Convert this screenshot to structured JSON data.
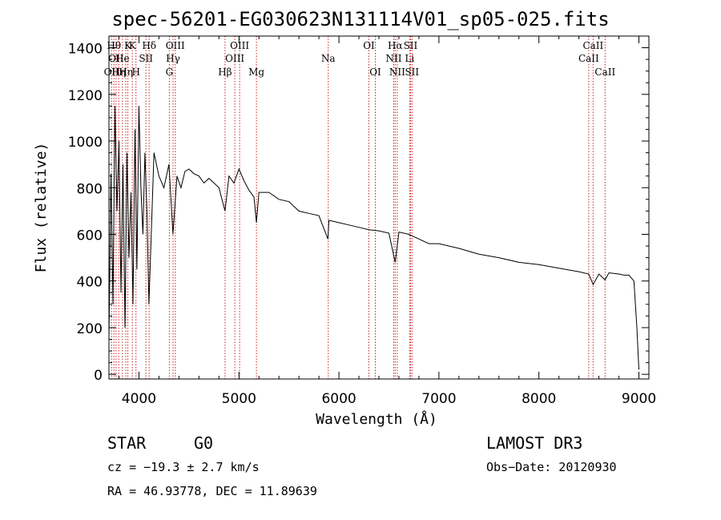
{
  "chart_data": {
    "type": "line",
    "title": "spec-56201-EG030623N131114V01_sp05-025.fits",
    "xlabel": "Wavelength (Å)",
    "ylabel": "Flux (relative)",
    "xlim": [
      3700,
      9100
    ],
    "ylim": [
      -20,
      1450
    ],
    "xticks": [
      4000,
      5000,
      6000,
      7000,
      8000,
      9000
    ],
    "yticks": [
      0,
      200,
      400,
      600,
      800,
      1000,
      1200,
      1400
    ],
    "series": [
      {
        "name": "flux",
        "x": [
          3700,
          3720,
          3740,
          3760,
          3780,
          3800,
          3820,
          3840,
          3860,
          3880,
          3900,
          3920,
          3940,
          3960,
          3980,
          4000,
          4020,
          4040,
          4060,
          4080,
          4100,
          4150,
          4200,
          4250,
          4300,
          4340,
          4380,
          4420,
          4460,
          4500,
          4550,
          4600,
          4650,
          4700,
          4750,
          4800,
          4861,
          4900,
          4950,
          5000,
          5050,
          5100,
          5150,
          5175,
          5200,
          5300,
          5400,
          5500,
          5600,
          5700,
          5800,
          5890,
          5900,
          6000,
          6100,
          6200,
          6300,
          6400,
          6500,
          6563,
          6600,
          6700,
          6800,
          6900,
          7000,
          7200,
          7400,
          7600,
          7800,
          8000,
          8200,
          8400,
          8498,
          8542,
          8600,
          8662,
          8700,
          8800,
          8850,
          8900,
          8950,
          8980,
          9000
        ],
        "y": [
          150,
          860,
          300,
          1150,
          700,
          1000,
          350,
          900,
          200,
          950,
          500,
          780,
          300,
          1050,
          450,
          1150,
          800,
          600,
          950,
          700,
          300,
          950,
          850,
          800,
          900,
          600,
          850,
          800,
          870,
          880,
          860,
          850,
          820,
          840,
          820,
          800,
          700,
          850,
          820,
          880,
          830,
          790,
          760,
          650,
          780,
          780,
          750,
          740,
          700,
          690,
          680,
          580,
          660,
          650,
          640,
          630,
          620,
          615,
          605,
          480,
          610,
          600,
          580,
          560,
          560,
          540,
          515,
          500,
          480,
          470,
          455,
          440,
          430,
          385,
          430,
          405,
          435,
          430,
          425,
          425,
          400,
          200,
          20
        ]
      }
    ],
    "lines": [
      {
        "x": 3726,
        "label": "OII",
        "row": 2
      },
      {
        "x": 3750,
        "label": "Hθ",
        "row": 0
      },
      {
        "x": 3771,
        "label": "OII",
        "row": 1
      },
      {
        "x": 3798,
        "label": "Hη",
        "row": 2
      },
      {
        "x": 3835,
        "label": "He",
        "row": 1
      },
      {
        "x": 3869,
        "label": "Hη",
        "row": 2
      },
      {
        "x": 3889,
        "label": "K",
        "row": 0
      },
      {
        "x": 3934,
        "label": "K",
        "row": 0
      },
      {
        "x": 3970,
        "label": "H",
        "row": 2
      },
      {
        "x": 4070,
        "label": "SII",
        "row": 1
      },
      {
        "x": 4102,
        "label": "Hδ",
        "row": 0
      },
      {
        "x": 4304,
        "label": "G",
        "row": 2
      },
      {
        "x": 4341,
        "label": "Hγ",
        "row": 1
      },
      {
        "x": 4363,
        "label": "OIII",
        "row": 0
      },
      {
        "x": 4861,
        "label": "Hβ",
        "row": 2
      },
      {
        "x": 4959,
        "label": "OIII",
        "row": 1
      },
      {
        "x": 5007,
        "label": "OIII",
        "row": 0
      },
      {
        "x": 5175,
        "label": "Mg",
        "row": 2
      },
      {
        "x": 5893,
        "label": "Na",
        "row": 1
      },
      {
        "x": 6300,
        "label": "OI",
        "row": 0
      },
      {
        "x": 6364,
        "label": "OI",
        "row": 2
      },
      {
        "x": 6548,
        "label": "NII",
        "row": 1
      },
      {
        "x": 6563,
        "label": "Hα",
        "row": 0
      },
      {
        "x": 6583,
        "label": "NII",
        "row": 2
      },
      {
        "x": 6707,
        "label": "Li",
        "row": 1
      },
      {
        "x": 6716,
        "label": "SII",
        "row": 0
      },
      {
        "x": 6731,
        "label": "SII",
        "row": 2
      },
      {
        "x": 8498,
        "label": "CaII",
        "row": 1
      },
      {
        "x": 8542,
        "label": "CaII",
        "row": 0
      },
      {
        "x": 8662,
        "label": "CaII",
        "row": 2
      }
    ]
  },
  "info": {
    "class_label": "STAR",
    "subclass_label": "G0",
    "survey": "LAMOST DR3",
    "redshift": "cz = −19.3 ± 2.7 km/s",
    "obs_date": "Obs−Date: 20120930",
    "coords": "RA =  46.93778, DEC =  11.89639"
  }
}
